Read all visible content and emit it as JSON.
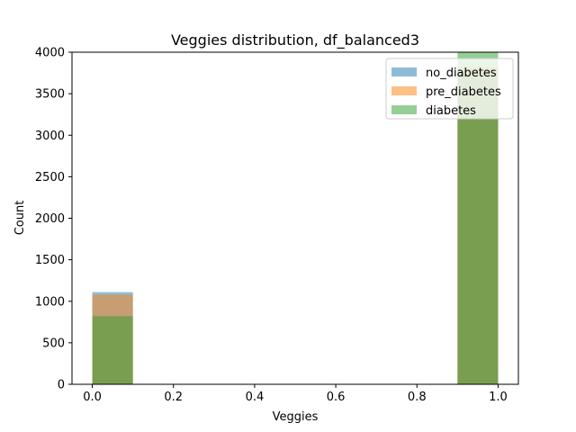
{
  "chart_data": {
    "type": "bar",
    "title": "Veggies distribution, df_balanced3",
    "xlabel": "Veggies",
    "ylabel": "Count",
    "xlim": [
      -0.05,
      1.05
    ],
    "ylim": [
      0,
      4000
    ],
    "xticks": [
      "0.0",
      "0.2",
      "0.4",
      "0.6",
      "0.8",
      "1.0"
    ],
    "yticks": [
      "0",
      "500",
      "1000",
      "1500",
      "2000",
      "2500",
      "3000",
      "3500",
      "4000"
    ],
    "bins": [
      [
        0.0,
        0.1
      ],
      [
        0.9,
        1.0
      ]
    ],
    "legend_position": "top-right",
    "series": [
      {
        "name": "no_diabetes",
        "color": "#1f77b4",
        "values": [
          1110,
          3790
        ]
      },
      {
        "name": "pre_diabetes",
        "color": "#ff7f0e",
        "values": [
          1080,
          3820
        ]
      },
      {
        "name": "diabetes",
        "color": "#2ca02c",
        "values": [
          820,
          4080
        ]
      }
    ],
    "alpha": 0.5
  }
}
